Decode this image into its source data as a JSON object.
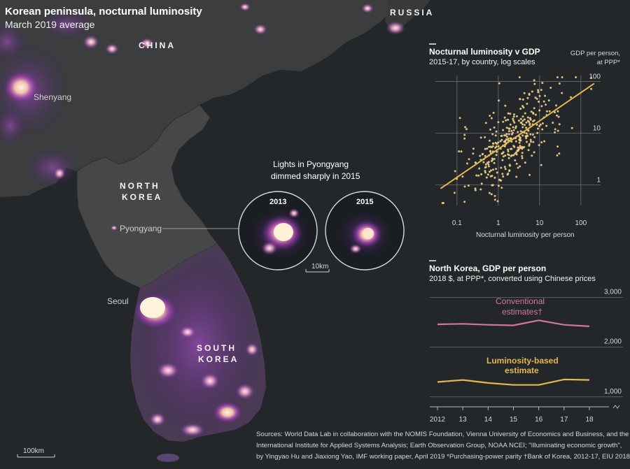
{
  "header": {
    "title": "Korean peninsula, nocturnal luminosity",
    "subtitle": "March 2019 average"
  },
  "map": {
    "countries": {
      "china": "CHINA",
      "russia": "RUSSIA",
      "north_korea_line1": "NORTH",
      "north_korea_line2": "KOREA",
      "south_korea_line1": "SOUTH",
      "south_korea_line2": "KOREA"
    },
    "cities": {
      "shenyang": "Shenyang",
      "pyongyang": "Pyongyang",
      "seoul": "Seoul"
    },
    "scale_label": "100km",
    "inset": {
      "annotation_line1": "Lights in Pyongyang",
      "annotation_line2": "dimmed sharply in 2015",
      "year_left": "2013",
      "year_right": "2015",
      "scale_label": "10km"
    }
  },
  "colors": {
    "background": "#23272a",
    "land": "#3a3c3e",
    "light_glow": "#ffe9c6",
    "scatter_point": "#f1cf86",
    "trend_line": "#e3b84e",
    "conventional_line": "#d1779f",
    "luminosity_line": "#e3b84e",
    "grid": "#6a6d70"
  },
  "chart_data": [
    {
      "type": "scatter",
      "title": "Nocturnal luminosity v GDP",
      "subtitle": "2015-17, by country, log scales",
      "xlabel": "Nocturnal luminosity per person",
      "ylabel_line1": "GDP per person,",
      "ylabel_line2": "at PPP*",
      "x_scale": "log",
      "y_scale": "log",
      "xlim": [
        0.03,
        300
      ],
      "ylim": [
        0.4,
        130
      ],
      "x_ticks": [
        0.1,
        1,
        10,
        100
      ],
      "x_tick_labels": [
        "0.1",
        "1",
        "10",
        "100"
      ],
      "y_ticks": [
        1,
        10,
        100
      ],
      "y_tick_labels": [
        "1",
        "10",
        "100"
      ],
      "trend_line": {
        "x": [
          0.04,
          210
        ],
        "y": [
          0.85,
          91
        ]
      },
      "points_note": "Dense cloud of country-year observations (approx. 350 points shown)",
      "point_count": 350
    },
    {
      "type": "line",
      "title": "North Korea, GDP per person",
      "subtitle": "2018 $, at PPP*, converted using Chinese prices",
      "x": [
        2012,
        2013,
        2014,
        2015,
        2016,
        2017,
        2018
      ],
      "x_tick_labels": [
        "2012",
        "13",
        "14",
        "15",
        "16",
        "17",
        "18"
      ],
      "y_ticks": [
        1000,
        2000,
        3000
      ],
      "y_tick_labels": [
        "1,000",
        "2,000",
        "3,000"
      ],
      "ylim": [
        800,
        3150
      ],
      "series": [
        {
          "name": "Conventional estimates",
          "label_line1": "Conventional",
          "label_line2": "estimates†",
          "values": [
            2460,
            2470,
            2450,
            2440,
            2540,
            2450,
            2420
          ]
        },
        {
          "name": "Luminosity-based estimate",
          "label_line1": "Luminosity-based",
          "label_line2": "estimate",
          "values": [
            1300,
            1340,
            1280,
            1240,
            1240,
            1350,
            1340
          ]
        }
      ]
    }
  ],
  "sources": {
    "line1": "Sources: World Data Lab in collaboration with the NOMIS Foundation, Vienna University of Economics and Business, and the",
    "line2": "International Institute for Applied Systems Analysis; Earth Observation Group, NOAA NCEI; \"Illuminating economic growth\",",
    "line3": "by Yingyao Hu and Jiaxiong Yao, IMF working paper, April 2019   *Purchasing-power parity   †Bank of Korea, 2012-17, EIU 2018"
  }
}
